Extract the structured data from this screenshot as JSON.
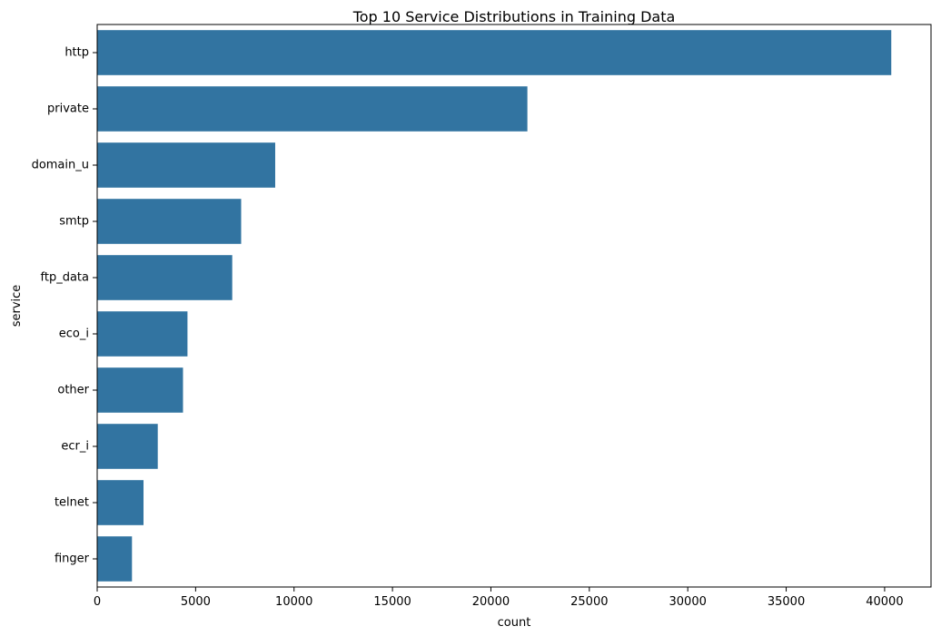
{
  "chart_data": {
    "type": "bar",
    "orientation": "horizontal",
    "title": "Top 10 Service Distributions in Training Data",
    "xlabel": "count",
    "ylabel": "service",
    "categories": [
      "http",
      "private",
      "domain_u",
      "smtp",
      "ftp_data",
      "eco_i",
      "other",
      "ecr_i",
      "telnet",
      "finger"
    ],
    "values": [
      40338,
      21853,
      9043,
      7313,
      6860,
      4586,
      4359,
      3077,
      2353,
      1767
    ],
    "xlim": [
      0,
      42357
    ],
    "xticks": [
      0,
      5000,
      10000,
      15000,
      20000,
      25000,
      30000,
      35000,
      40000
    ],
    "grid": false,
    "bar_color": "#3274a1"
  }
}
